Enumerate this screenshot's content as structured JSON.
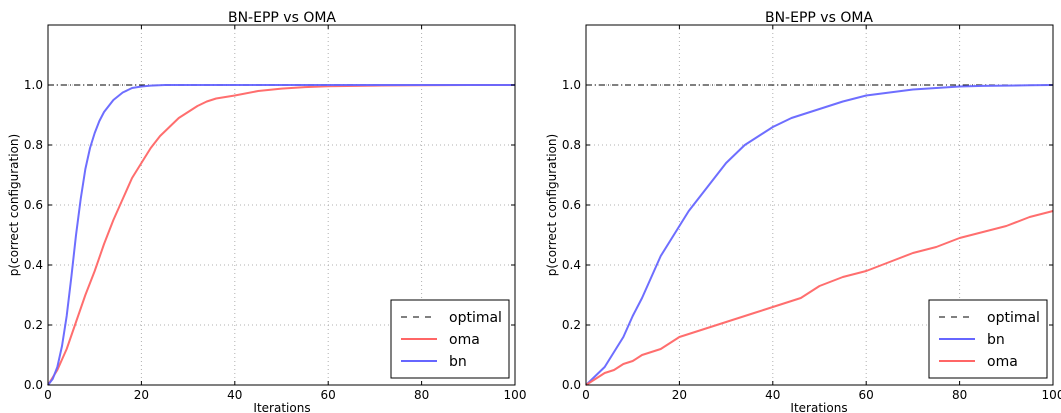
{
  "colors": {
    "optimal": "#000000",
    "bn": "#6666ff",
    "oma": "#ff6666",
    "grid": "#b0b0b0"
  },
  "chart_data": [
    {
      "type": "line",
      "title": "BN-EPP vs OMA",
      "xlabel": "Iterations",
      "ylabel": "p(correct configuration)",
      "xlim": [
        0,
        100
      ],
      "ylim": [
        0,
        1.2
      ],
      "xticks": [
        0,
        20,
        40,
        60,
        80,
        100
      ],
      "yticks": [
        0.0,
        0.2,
        0.4,
        0.6,
        0.8,
        1.0
      ],
      "xtick_labels": [
        "0",
        "20",
        "40",
        "60",
        "80",
        "100"
      ],
      "ytick_labels": [
        "0.0",
        "0.2",
        "0.4",
        "0.6",
        "0.8",
        "1.0"
      ],
      "grid": true,
      "legend_position": "bottom-right",
      "legend_order": [
        "optimal",
        "oma",
        "bn"
      ],
      "series": [
        {
          "key": "optimal",
          "name": "optimal",
          "style": "dashdot",
          "x": [
            0,
            100
          ],
          "y": [
            1.0,
            1.0
          ]
        },
        {
          "key": "oma",
          "name": "oma",
          "style": "solid",
          "x": [
            0,
            2,
            4,
            6,
            8,
            10,
            12,
            14,
            16,
            18,
            20,
            22,
            24,
            26,
            28,
            30,
            32,
            34,
            36,
            38,
            40,
            45,
            50,
            55,
            60,
            70,
            80,
            90,
            100
          ],
          "y": [
            0.0,
            0.05,
            0.12,
            0.21,
            0.3,
            0.38,
            0.47,
            0.55,
            0.62,
            0.69,
            0.74,
            0.79,
            0.83,
            0.86,
            0.89,
            0.91,
            0.93,
            0.945,
            0.955,
            0.96,
            0.965,
            0.98,
            0.988,
            0.993,
            0.996,
            0.998,
            0.999,
            1.0,
            1.0
          ]
        },
        {
          "key": "bn",
          "name": "bn",
          "style": "solid",
          "x": [
            0,
            1,
            2,
            3,
            4,
            5,
            6,
            7,
            8,
            9,
            10,
            11,
            12,
            14,
            16,
            18,
            20,
            22,
            25,
            30,
            40,
            60,
            80,
            100
          ],
          "y": [
            0.0,
            0.02,
            0.06,
            0.13,
            0.23,
            0.36,
            0.5,
            0.62,
            0.72,
            0.79,
            0.84,
            0.88,
            0.91,
            0.95,
            0.975,
            0.99,
            0.995,
            0.998,
            1.0,
            1.0,
            1.0,
            1.0,
            1.0,
            1.0
          ]
        }
      ]
    },
    {
      "type": "line",
      "title": "BN-EPP vs OMA",
      "xlabel": "Iterations",
      "ylabel": "p(correct configuration)",
      "xlim": [
        0,
        100
      ],
      "ylim": [
        0,
        1.2
      ],
      "xticks": [
        0,
        20,
        40,
        60,
        80,
        100
      ],
      "yticks": [
        0.0,
        0.2,
        0.4,
        0.6,
        0.8,
        1.0
      ],
      "xtick_labels": [
        "0",
        "20",
        "40",
        "60",
        "80",
        "100"
      ],
      "ytick_labels": [
        "0.0",
        "0.2",
        "0.4",
        "0.6",
        "0.8",
        "1.0"
      ],
      "grid": true,
      "legend_position": "bottom-right",
      "legend_order": [
        "optimal",
        "bn",
        "oma"
      ],
      "series": [
        {
          "key": "optimal",
          "name": "optimal",
          "style": "dashdot",
          "x": [
            0,
            100
          ],
          "y": [
            1.0,
            1.0
          ]
        },
        {
          "key": "bn",
          "name": "bn",
          "style": "solid",
          "x": [
            0,
            2,
            4,
            6,
            8,
            10,
            12,
            14,
            16,
            18,
            20,
            22,
            24,
            26,
            28,
            30,
            32,
            34,
            36,
            38,
            40,
            42,
            44,
            46,
            48,
            50,
            55,
            60,
            65,
            70,
            75,
            80,
            85,
            90,
            95,
            100
          ],
          "y": [
            0.0,
            0.03,
            0.06,
            0.11,
            0.16,
            0.23,
            0.29,
            0.36,
            0.43,
            0.48,
            0.53,
            0.58,
            0.62,
            0.66,
            0.7,
            0.74,
            0.77,
            0.8,
            0.82,
            0.84,
            0.86,
            0.875,
            0.89,
            0.9,
            0.91,
            0.92,
            0.945,
            0.965,
            0.975,
            0.985,
            0.99,
            0.995,
            0.997,
            0.998,
            0.999,
            1.0
          ]
        },
        {
          "key": "oma",
          "name": "oma",
          "style": "solid",
          "x": [
            0,
            2,
            4,
            6,
            8,
            10,
            12,
            14,
            16,
            18,
            20,
            22,
            24,
            26,
            28,
            30,
            32,
            34,
            36,
            38,
            40,
            42,
            44,
            46,
            48,
            50,
            55,
            60,
            65,
            70,
            75,
            80,
            85,
            90,
            95,
            100
          ],
          "y": [
            0.0,
            0.02,
            0.04,
            0.05,
            0.07,
            0.08,
            0.1,
            0.11,
            0.12,
            0.14,
            0.16,
            0.17,
            0.18,
            0.19,
            0.2,
            0.21,
            0.22,
            0.23,
            0.24,
            0.25,
            0.26,
            0.27,
            0.28,
            0.29,
            0.31,
            0.33,
            0.36,
            0.38,
            0.41,
            0.44,
            0.46,
            0.49,
            0.51,
            0.53,
            0.56,
            0.58
          ]
        }
      ]
    }
  ]
}
